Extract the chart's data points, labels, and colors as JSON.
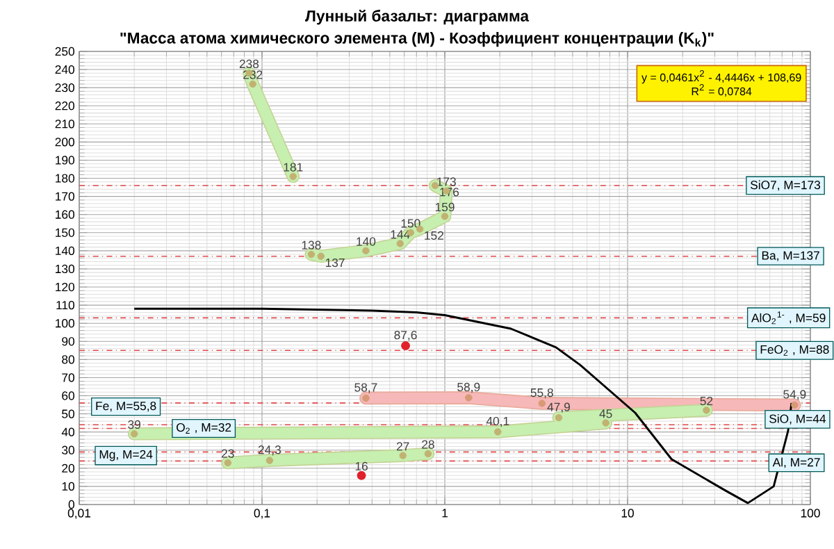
{
  "chart_data": {
    "type": "line",
    "title": "Лунный базальт: диаграмма",
    "subtitle": "\"Масса атома химического элемента (M) - Коэффициент концентрации (K$_{k}$)\"",
    "log": "x",
    "grid": true,
    "marker": "circle",
    "xlim": [
      0.01,
      100
    ],
    "xticks": [
      {
        "value": 0.01,
        "label": "0,01"
      },
      {
        "value": 0.1,
        "label": "0,1"
      },
      1,
      10,
      100
    ],
    "ylim": [
      0,
      250
    ],
    "yticks": [
      0,
      10,
      20,
      30,
      40,
      50,
      60,
      70,
      80,
      90,
      100,
      110,
      120,
      130,
      140,
      150,
      160,
      170,
      180,
      190,
      200,
      210,
      220,
      230,
      240,
      250
    ],
    "series": [
      {
        "color": "#c6efb0",
        "x": [
          0.085,
          0.089,
          0.148
        ],
        "values": [
          238,
          232,
          181
        ],
        "value_labels": [
          "238",
          "232",
          "181"
        ]
      },
      {
        "color": "#c6efb0",
        "x": [
          0.186,
          0.21,
          0.37,
          0.57,
          0.65,
          0.73,
          1.0,
          1.02,
          0.885
        ],
        "values": [
          138,
          137,
          140,
          144,
          150,
          152,
          159,
          173,
          176
        ],
        "value_labels": [
          "138",
          "137",
          "140",
          "144",
          "150",
          "152",
          "159",
          "173",
          "176"
        ]
      },
      {
        "color": "#f6b8b8",
        "x": [
          0.37,
          1.35,
          3.4,
          82
        ],
        "values": [
          58.7,
          58.9,
          55.8,
          54.9
        ],
        "value_labels": [
          "58,7",
          "58,9",
          "55,8",
          "54,9"
        ]
      },
      {
        "color": "#c6efb0",
        "x": [
          0.02,
          1.95,
          7.6,
          4.2,
          27
        ],
        "values": [
          39,
          40.1,
          45,
          47.9,
          52
        ],
        "value_labels": [
          "39",
          "40,1",
          "45",
          "47,9",
          "52"
        ]
      },
      {
        "color": "#c6efb0",
        "x": [
          0.065,
          0.11,
          0.59,
          0.81
        ],
        "values": [
          23,
          24.3,
          27,
          28
        ],
        "value_labels": [
          "23",
          "24,3",
          "27",
          "28"
        ]
      },
      {
        "type": "scatter",
        "color": "#e0202a",
        "x": [
          0.61,
          0.35
        ],
        "values": [
          87.6,
          16
        ],
        "value_labels": [
          "87,6",
          "16"
        ]
      },
      {
        "color": "#000000",
        "marker": "none",
        "x": [
          0.02,
          0.1,
          0.4,
          0.7,
          1,
          2.3,
          4.06,
          5.5,
          11,
          17.4,
          34.3,
          45.5,
          63,
          75.5,
          78.9
        ],
        "values": [
          108,
          108,
          107,
          106,
          104.5,
          97,
          86.7,
          77,
          50.6,
          25,
          7.7,
          0.8,
          10,
          40.6,
          56
        ]
      }
    ],
    "ref_lines": [
      {
        "axis": "y",
        "value": 176,
        "color": "#e04848"
      },
      {
        "axis": "y",
        "value": 137,
        "color": "#e04848"
      },
      {
        "axis": "y",
        "value": 103,
        "color": "#e04848"
      },
      {
        "axis": "y",
        "value": 85,
        "color": "#e04848"
      },
      {
        "axis": "y",
        "value": 56,
        "color": "#e04848"
      },
      {
        "axis": "y",
        "value": 42,
        "color": "#e04848"
      },
      {
        "axis": "y",
        "value": 44,
        "color": "#e04848"
      },
      {
        "axis": "y",
        "value": 29,
        "color": "#e04848"
      },
      {
        "axis": "y",
        "value": 24,
        "color": "#e04848"
      }
    ],
    "annotations": [
      "y = 0,0461x$^{2}$ - 4,4446x + 108,69",
      "R$^{2}$ = 0,0784",
      {
        "text": "SiO7, M=173",
        "x": 73,
        "y": 176
      },
      {
        "text": "Ba, M=137",
        "x": 78,
        "y": 137
      },
      {
        "text": "AlO$_{2}$$^{1-}$ , M=59",
        "x": 76,
        "y": 103
      },
      {
        "text": "FeO$_{2}$ , M=88",
        "x": 82,
        "y": 85
      },
      {
        "text": "Fe, M=55,8",
        "x": 0.018,
        "y": 54
      },
      {
        "text": "O$_{2}$ , M=32",
        "x": 0.048,
        "y": 42
      },
      {
        "text": "SiO, M=44",
        "x": 85,
        "y": 47
      },
      {
        "text": "Al, M=27",
        "x": 84,
        "y": 23
      },
      {
        "text": "Mg, M=24",
        "x": 0.018,
        "y": 27
      }
    ]
  }
}
